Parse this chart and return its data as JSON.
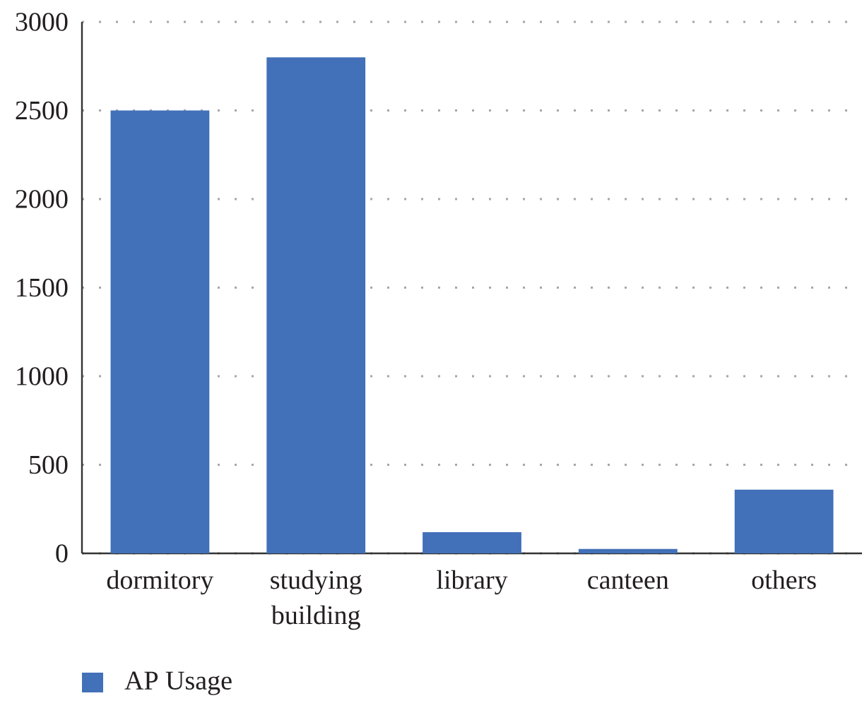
{
  "chart_data": {
    "type": "bar",
    "categories": [
      "dormitory",
      "studying building",
      "library",
      "canteen",
      "others"
    ],
    "series": [
      {
        "name": "AP Usage",
        "color": "#4270b9",
        "values": [
          2500,
          2800,
          120,
          25,
          360
        ]
      }
    ],
    "ylim": [
      0,
      3000
    ],
    "yticks": [
      0,
      500,
      1000,
      1500,
      2000,
      2500,
      3000
    ],
    "grid": "y",
    "legend": "bottom"
  }
}
